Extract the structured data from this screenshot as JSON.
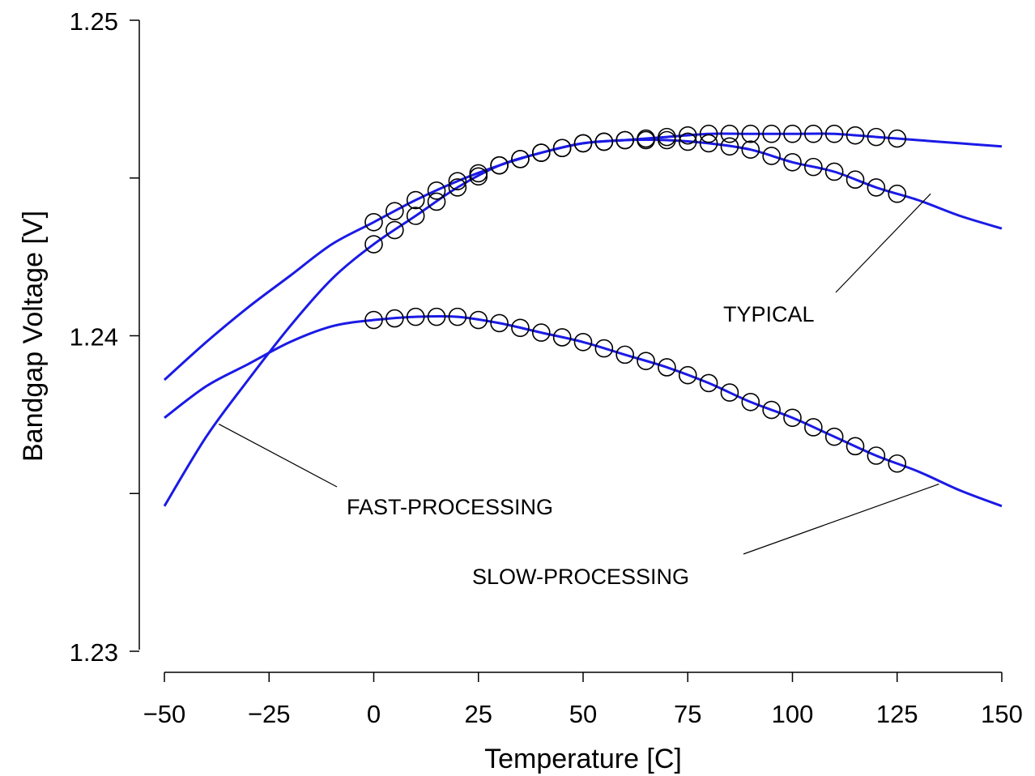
{
  "chart_data": {
    "type": "line",
    "xlabel": "Temperature [C]",
    "ylabel": "Bandgap Voltage [V]",
    "xlim": [
      -50,
      150
    ],
    "ylim": [
      1.23,
      1.25
    ],
    "xticks": [
      -50,
      -25,
      0,
      25,
      50,
      75,
      100,
      125,
      150
    ],
    "xtick_labels": [
      "−50",
      "−25",
      "0",
      "25",
      "50",
      "75",
      "100",
      "125",
      "150"
    ],
    "yticks": [
      1.23,
      1.235,
      1.24,
      1.245,
      1.25
    ],
    "ytick_labels": [
      "1.23",
      "",
      "1.24",
      "",
      "1.25"
    ],
    "grid": false,
    "legend": "none",
    "marker_x": [
      0,
      5,
      10,
      15,
      20,
      25,
      30,
      35,
      40,
      45,
      50,
      55,
      60,
      65,
      70,
      75,
      80,
      85,
      90,
      95,
      100,
      105,
      110,
      115,
      120,
      125
    ],
    "series": [
      {
        "x": [
          -50,
          -40,
          -30,
          -20,
          -10,
          0,
          10,
          20,
          30,
          40,
          50,
          60,
          70,
          80,
          90,
          100,
          110,
          120,
          130,
          140,
          150
        ],
        "values": [
          1.2386,
          1.2398,
          1.2409,
          1.2419,
          1.2429,
          1.2436,
          1.2443,
          1.2449,
          1.2454,
          1.2458,
          1.2461,
          1.2462,
          1.2462,
          1.2461,
          1.2459,
          1.2455,
          1.2452,
          1.2447,
          1.2443,
          1.2438,
          1.2434
        ],
        "color": "#1a1ae6"
      },
      {
        "x": [
          -50,
          -40,
          -30,
          -20,
          -10,
          0,
          10,
          20,
          30,
          40,
          50,
          60,
          70,
          80,
          90,
          100,
          110,
          120,
          130,
          140,
          150
        ],
        "values": [
          1.2374,
          1.2384,
          1.2391,
          1.2398,
          1.2403,
          1.2405,
          1.2406,
          1.2406,
          1.2404,
          1.2401,
          1.2398,
          1.2394,
          1.239,
          1.2385,
          1.2379,
          1.2374,
          1.2368,
          1.2362,
          1.2357,
          1.2351,
          1.2346
        ],
        "color": "#1a1ae6"
      },
      {
        "x": [
          -50,
          -40,
          -30,
          -20,
          -10,
          0,
          10,
          20,
          30,
          40,
          50,
          60,
          70,
          80,
          90,
          100,
          110,
          120,
          130,
          140,
          150
        ],
        "values": [
          1.2346,
          1.2368,
          1.2386,
          1.2403,
          1.2418,
          1.2429,
          1.2438,
          1.2447,
          1.2454,
          1.2458,
          1.2461,
          1.2462,
          1.2463,
          1.2464,
          1.2464,
          1.2464,
          1.2464,
          1.2463,
          1.2462,
          1.2461,
          1.246
        ],
        "color": "#1a1ae6"
      }
    ],
    "annotations": [
      {
        "text": "TYPICAL",
        "target_x": 133,
        "target_y": 1.2445
      },
      {
        "text": "FAST-PROCESSING",
        "target_x": -37,
        "target_y": 1.2372
      },
      {
        "text": "SLOW-PROCESSING",
        "target_x": 135,
        "target_y": 1.2353
      }
    ]
  }
}
